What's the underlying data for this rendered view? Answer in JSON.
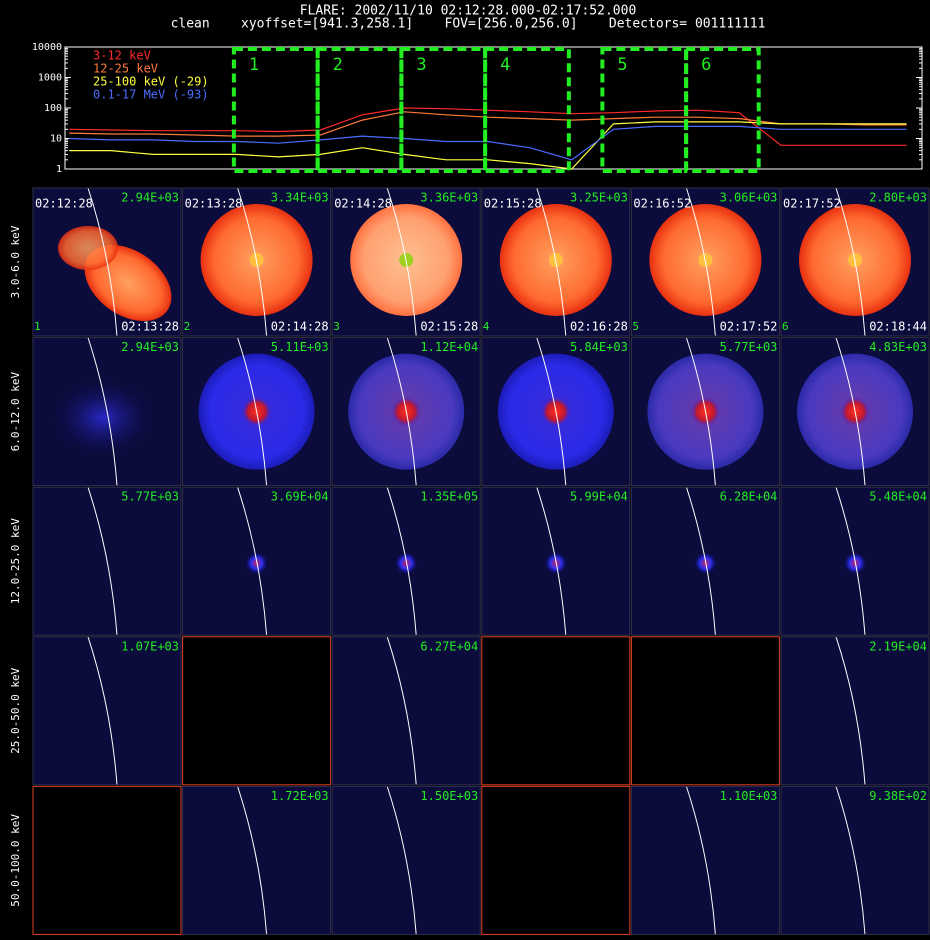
{
  "header": {
    "title": "FLARE: 2002/11/10 02:12:28.000-02:17:52.000",
    "subtitle": "clean    xyoffset=[941.3,258.1]    FOV=[256.0,256.0]    Detectors= 001111111"
  },
  "chart_data": {
    "type": "line",
    "log_y": true,
    "legend": "upper left",
    "x": [
      "02:10:30",
      "02:11:00",
      "02:11:30",
      "02:12:00",
      "02:12:30",
      "02:13:00",
      "02:13:30",
      "02:14:00",
      "02:14:30",
      "02:15:00",
      "02:15:30",
      "02:16:00",
      "02:16:30",
      "02:17:00",
      "02:17:30",
      "02:18:00",
      "02:18:30",
      "02:19:00",
      "02:19:30",
      "02:20:00",
      "02:20:30"
    ],
    "xlim": [
      "02:10:27",
      "02:20:41"
    ],
    "xticks": [
      "02:12",
      "02:14",
      "02:16",
      "02:18",
      "02:20"
    ],
    "ylim": [
      1,
      10000
    ],
    "yticks": [
      1,
      10,
      100,
      1000,
      10000
    ],
    "series": [
      {
        "name": "3-12 keV",
        "color": "#ff2a2a",
        "values": [
          20,
          19,
          18,
          18,
          18,
          17,
          19,
          60,
          100,
          95,
          85,
          75,
          65,
          70,
          80,
          85,
          70,
          6,
          6,
          6,
          6
        ]
      },
      {
        "name": "12-25 keV",
        "color": "#ff7a3a",
        "values": [
          15,
          14,
          14,
          13,
          12,
          12,
          13,
          40,
          75,
          60,
          50,
          45,
          40,
          45,
          50,
          50,
          45,
          30,
          30,
          28,
          28
        ]
      },
      {
        "name": "25-100 keV (-29)",
        "color": "#ffff40",
        "values": [
          4,
          4,
          3,
          3,
          3,
          2.5,
          3,
          5,
          3,
          2,
          2,
          1.5,
          1,
          30,
          35,
          35,
          35,
          30,
          30,
          30,
          30
        ]
      },
      {
        "name": "0.1-17 MeV (-93)",
        "color": "#4a6cff",
        "values": [
          10,
          9,
          9,
          8,
          8,
          7,
          9,
          12,
          10,
          8,
          8,
          5,
          2,
          20,
          25,
          25,
          25,
          20,
          20,
          20,
          20
        ]
      }
    ],
    "intervals": [
      {
        "label": "1",
        "start": "02:12:28",
        "end": "02:13:28"
      },
      {
        "label": "2",
        "start": "02:13:28",
        "end": "02:14:28"
      },
      {
        "label": "3",
        "start": "02:14:28",
        "end": "02:15:28"
      },
      {
        "label": "4",
        "start": "02:15:28",
        "end": "02:16:28"
      },
      {
        "label": "5",
        "start": "02:16:52",
        "end": "02:17:52"
      },
      {
        "label": "6",
        "start": "02:17:52",
        "end": "02:18:44"
      }
    ]
  },
  "image_grid": {
    "rows": [
      {
        "label": "3.0-6.0 keV",
        "max": [
          "2.94E+03",
          "3.34E+03",
          "3.36E+03",
          "3.25E+03",
          "3.06E+03",
          "2.80E+03"
        ]
      },
      {
        "label": "6.0-12.0 keV",
        "max": [
          "2.94E+03",
          "5.11E+03",
          "1.12E+04",
          "5.84E+03",
          "5.77E+03",
          "4.83E+03"
        ]
      },
      {
        "label": "12.0-25.0 keV",
        "max": [
          "5.77E+03",
          "3.69E+04",
          "1.35E+05",
          "5.99E+04",
          "6.28E+04",
          "5.48E+04"
        ]
      },
      {
        "label": "25.0-50.0 keV",
        "max": [
          "1.07E+03",
          null,
          "6.27E+04",
          null,
          null,
          "2.19E+04"
        ]
      },
      {
        "label": "50.0-100.0 keV",
        "max": [
          null,
          "1.72E+03",
          "1.50E+03",
          null,
          "1.10E+03",
          "9.38E+02"
        ]
      }
    ]
  }
}
